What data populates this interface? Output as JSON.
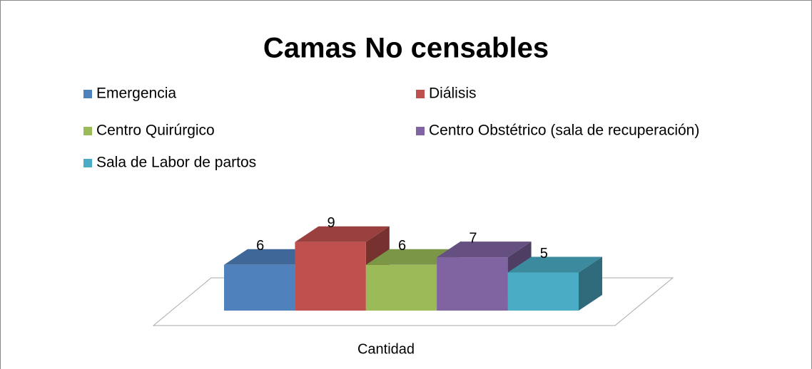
{
  "chart_data": {
    "type": "bar3d",
    "title": "Camas No censables",
    "categories": [
      "Cantidad"
    ],
    "series": [
      {
        "name": "Emergencia",
        "color": "#4f81bd",
        "values": [
          6
        ]
      },
      {
        "name": "Diálisis",
        "color": "#c0504d",
        "values": [
          9
        ]
      },
      {
        "name": "Centro Quirúrgico",
        "color": "#9bbb59",
        "values": [
          6
        ]
      },
      {
        "name": "Centro Obstétrico (sala de recuperación)",
        "color": "#8064a2",
        "values": [
          7
        ]
      },
      {
        "name": "Sala de Labor de partos",
        "color": "#4bacc6",
        "values": [
          5
        ]
      }
    ],
    "legend": "top"
  }
}
